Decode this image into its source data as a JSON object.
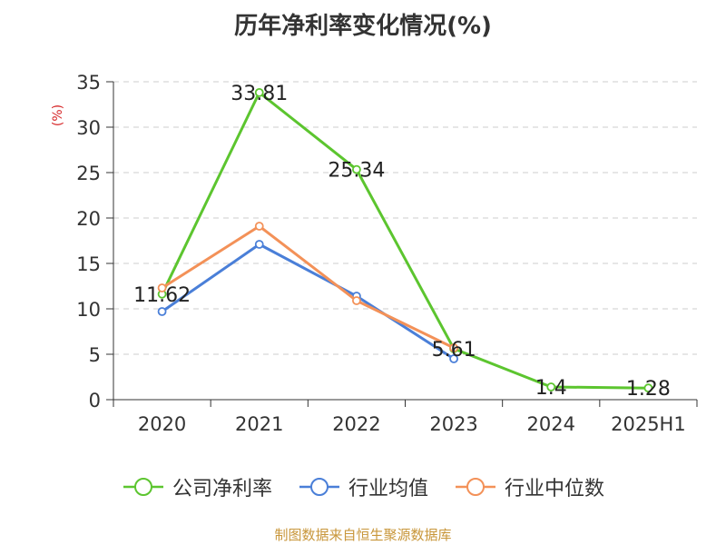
{
  "chart_data": {
    "type": "line",
    "title": "历年净利率变化情况(%)",
    "ylabel": "(%)",
    "xlabel": "",
    "ylim": [
      0,
      35
    ],
    "yticks": [
      0,
      5,
      10,
      15,
      20,
      25,
      30,
      35
    ],
    "grid": true,
    "legend_position": "bottom",
    "categories": [
      "2020",
      "2021",
      "2022",
      "2023",
      "2024",
      "2025H1"
    ],
    "series": [
      {
        "name": "公司净利率",
        "color": "#5cc52f",
        "values": [
          11.62,
          33.81,
          25.34,
          5.61,
          1.4,
          1.28
        ],
        "labels": [
          "11.62",
          "33.81",
          "25.34",
          "5.61",
          "1.4",
          "1.28"
        ]
      },
      {
        "name": "行业均值",
        "color": "#4a7fd8",
        "values": [
          9.7,
          17.1,
          11.4,
          4.5,
          null,
          null
        ]
      },
      {
        "name": "行业中位数",
        "color": "#f39158",
        "values": [
          12.3,
          19.1,
          10.9,
          5.7,
          null,
          null
        ]
      }
    ]
  },
  "source_note": "制图数据来自恒生聚源数据库"
}
